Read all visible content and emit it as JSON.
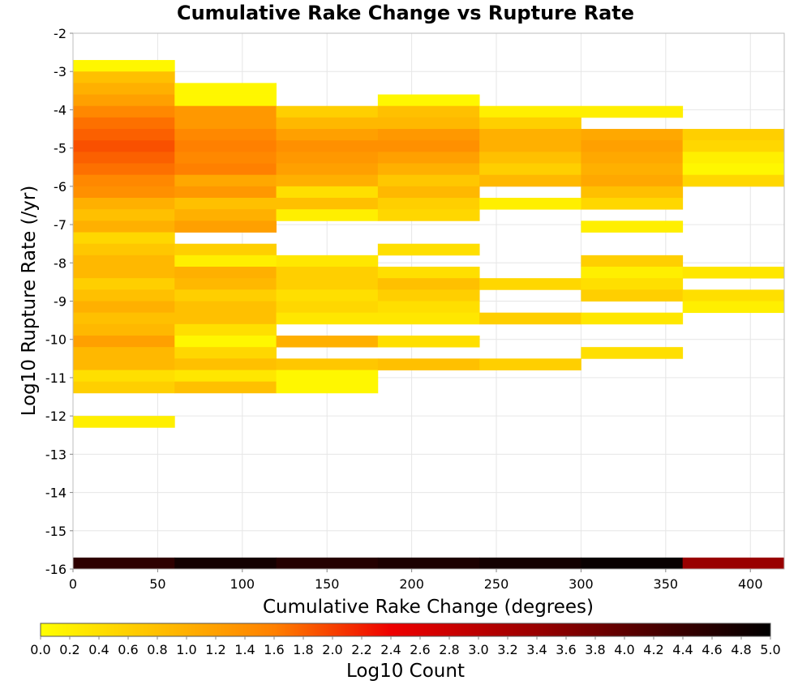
{
  "chart_data": {
    "type": "heatmap",
    "title": "Cumulative Rake Change vs Rupture Rate",
    "xlabel": "Cumulative Rake Change (degrees)",
    "ylabel": "Log10 Rupture Rate (/yr)",
    "xlim": [
      0,
      420
    ],
    "ylim": [
      -16,
      -2
    ],
    "x_ticks": [
      0,
      50,
      100,
      150,
      200,
      250,
      300,
      350,
      400
    ],
    "y_ticks": [
      -2,
      -3,
      -4,
      -5,
      -6,
      -7,
      -8,
      -9,
      -10,
      -11,
      -12,
      -13,
      -14,
      -15,
      -16
    ],
    "grid": true,
    "x_bin_width": 60,
    "y_bin_height": 0.3,
    "colorbar": {
      "label": "Log10 Count",
      "min": 0.0,
      "max": 5.0,
      "ticks": [
        "0.0",
        "0.2",
        "0.4",
        "0.6",
        "0.8",
        "1.0",
        "1.2",
        "1.4",
        "1.6",
        "1.8",
        "2.0",
        "2.2",
        "2.4",
        "2.6",
        "2.8",
        "3.0",
        "3.2",
        "3.4",
        "3.6",
        "3.8",
        "4.0",
        "4.2",
        "4.4",
        "4.6",
        "4.8",
        "5.0"
      ],
      "stops": [
        {
          "value": 0.0,
          "color": "#ffff00"
        },
        {
          "value": 1.6,
          "color": "#ff8000"
        },
        {
          "value": 2.4,
          "color": "#ee0000"
        },
        {
          "value": 3.4,
          "color": "#990000"
        },
        {
          "value": 4.2,
          "color": "#4a0000"
        },
        {
          "value": 5.0,
          "color": "#000000"
        }
      ]
    },
    "columns": [
      {
        "x": 0,
        "cells": [
          {
            "y": -3.0,
            "v": 0.1
          },
          {
            "y": -3.3,
            "v": 0.8
          },
          {
            "y": -3.6,
            "v": 1.0
          },
          {
            "y": -3.9,
            "v": 1.2
          },
          {
            "y": -4.2,
            "v": 1.5
          },
          {
            "y": -4.5,
            "v": 1.7
          },
          {
            "y": -4.8,
            "v": 1.8
          },
          {
            "y": -5.1,
            "v": 1.9
          },
          {
            "y": -5.4,
            "v": 1.8
          },
          {
            "y": -5.7,
            "v": 1.7
          },
          {
            "y": -6.0,
            "v": 1.5
          },
          {
            "y": -6.3,
            "v": 1.4
          },
          {
            "y": -6.6,
            "v": 1.0
          },
          {
            "y": -6.9,
            "v": 0.8
          },
          {
            "y": -7.2,
            "v": 1.0
          },
          {
            "y": -7.5,
            "v": 0.5
          },
          {
            "y": -7.8,
            "v": 0.7
          },
          {
            "y": -8.1,
            "v": 0.9
          },
          {
            "y": -8.4,
            "v": 0.9
          },
          {
            "y": -8.7,
            "v": 0.6
          },
          {
            "y": -9.0,
            "v": 0.8
          },
          {
            "y": -9.3,
            "v": 1.0
          },
          {
            "y": -9.6,
            "v": 0.8
          },
          {
            "y": -9.9,
            "v": 0.9
          },
          {
            "y": -10.2,
            "v": 1.2
          },
          {
            "y": -10.5,
            "v": 0.9
          },
          {
            "y": -10.8,
            "v": 0.9
          },
          {
            "y": -11.1,
            "v": 0.4
          },
          {
            "y": -11.4,
            "v": 0.6
          },
          {
            "y": -12.3,
            "v": 0.2
          },
          {
            "y": -16.0,
            "v": 4.5
          }
        ]
      },
      {
        "x": 60,
        "cells": [
          {
            "y": -3.6,
            "v": 0.1
          },
          {
            "y": -3.9,
            "v": 0.1
          },
          {
            "y": -4.2,
            "v": 1.3
          },
          {
            "y": -4.5,
            "v": 1.3
          },
          {
            "y": -4.8,
            "v": 1.5
          },
          {
            "y": -5.1,
            "v": 1.6
          },
          {
            "y": -5.4,
            "v": 1.5
          },
          {
            "y": -5.7,
            "v": 1.6
          },
          {
            "y": -6.0,
            "v": 1.1
          },
          {
            "y": -6.3,
            "v": 1.3
          },
          {
            "y": -6.6,
            "v": 0.8
          },
          {
            "y": -6.9,
            "v": 1.0
          },
          {
            "y": -7.2,
            "v": 1.2
          },
          {
            "y": -7.8,
            "v": 0.6
          },
          {
            "y": -8.1,
            "v": 0.2
          },
          {
            "y": -8.4,
            "v": 1.0
          },
          {
            "y": -8.7,
            "v": 0.9
          },
          {
            "y": -9.0,
            "v": 0.6
          },
          {
            "y": -9.3,
            "v": 0.8
          },
          {
            "y": -9.6,
            "v": 0.8
          },
          {
            "y": -9.9,
            "v": 0.4
          },
          {
            "y": -10.2,
            "v": 0.1
          },
          {
            "y": -10.5,
            "v": 0.5
          },
          {
            "y": -10.8,
            "v": 0.8
          },
          {
            "y": -11.1,
            "v": 0.3
          },
          {
            "y": -11.4,
            "v": 0.8
          },
          {
            "y": -16.0,
            "v": 4.8
          }
        ]
      },
      {
        "x": 120,
        "cells": [
          {
            "y": -4.2,
            "v": 0.6
          },
          {
            "y": -4.5,
            "v": 0.9
          },
          {
            "y": -4.8,
            "v": 1.2
          },
          {
            "y": -5.1,
            "v": 1.4
          },
          {
            "y": -5.4,
            "v": 1.3
          },
          {
            "y": -5.7,
            "v": 1.2
          },
          {
            "y": -6.0,
            "v": 1.0
          },
          {
            "y": -6.3,
            "v": 0.4
          },
          {
            "y": -6.6,
            "v": 0.8
          },
          {
            "y": -6.9,
            "v": 0.2
          },
          {
            "y": -8.1,
            "v": 0.3
          },
          {
            "y": -8.4,
            "v": 0.6
          },
          {
            "y": -8.7,
            "v": 0.6
          },
          {
            "y": -9.0,
            "v": 0.4
          },
          {
            "y": -9.3,
            "v": 0.5
          },
          {
            "y": -9.6,
            "v": 0.3
          },
          {
            "y": -10.2,
            "v": 1.0
          },
          {
            "y": -10.8,
            "v": 0.7
          },
          {
            "y": -11.1,
            "v": 0.1
          },
          {
            "y": -11.4,
            "v": 0.1
          },
          {
            "y": -16.0,
            "v": 4.6
          }
        ]
      },
      {
        "x": 180,
        "cells": [
          {
            "y": -3.9,
            "v": 0.1
          },
          {
            "y": -4.2,
            "v": 0.8
          },
          {
            "y": -4.5,
            "v": 0.9
          },
          {
            "y": -4.8,
            "v": 1.3
          },
          {
            "y": -5.1,
            "v": 1.4
          },
          {
            "y": -5.4,
            "v": 1.2
          },
          {
            "y": -5.7,
            "v": 1.0
          },
          {
            "y": -6.0,
            "v": 0.7
          },
          {
            "y": -6.3,
            "v": 0.9
          },
          {
            "y": -6.6,
            "v": 0.6
          },
          {
            "y": -6.9,
            "v": 0.5
          },
          {
            "y": -7.8,
            "v": 0.4
          },
          {
            "y": -8.4,
            "v": 0.4
          },
          {
            "y": -8.7,
            "v": 0.8
          },
          {
            "y": -9.0,
            "v": 0.6
          },
          {
            "y": -9.3,
            "v": 0.4
          },
          {
            "y": -9.6,
            "v": 0.3
          },
          {
            "y": -10.2,
            "v": 0.4
          },
          {
            "y": -10.8,
            "v": 0.8
          },
          {
            "y": -16.0,
            "v": 4.7
          }
        ]
      },
      {
        "x": 240,
        "cells": [
          {
            "y": -4.2,
            "v": 0.2
          },
          {
            "y": -4.5,
            "v": 0.6
          },
          {
            "y": -4.8,
            "v": 1.0
          },
          {
            "y": -5.1,
            "v": 1.0
          },
          {
            "y": -5.4,
            "v": 0.8
          },
          {
            "y": -5.7,
            "v": 0.6
          },
          {
            "y": -6.0,
            "v": 0.9
          },
          {
            "y": -6.6,
            "v": 0.2
          },
          {
            "y": -8.7,
            "v": 0.5
          },
          {
            "y": -9.6,
            "v": 0.6
          },
          {
            "y": -10.8,
            "v": 0.6
          },
          {
            "y": -16.0,
            "v": 4.8
          }
        ]
      },
      {
        "x": 300,
        "cells": [
          {
            "y": -4.2,
            "v": 0.2
          },
          {
            "y": -4.8,
            "v": 1.1
          },
          {
            "y": -5.1,
            "v": 1.2
          },
          {
            "y": -5.4,
            "v": 1.1
          },
          {
            "y": -5.7,
            "v": 1.0
          },
          {
            "y": -6.0,
            "v": 1.1
          },
          {
            "y": -6.3,
            "v": 0.8
          },
          {
            "y": -6.6,
            "v": 0.5
          },
          {
            "y": -7.2,
            "v": 0.2
          },
          {
            "y": -8.1,
            "v": 0.6
          },
          {
            "y": -8.4,
            "v": 0.2
          },
          {
            "y": -8.7,
            "v": 0.4
          },
          {
            "y": -9.0,
            "v": 0.6
          },
          {
            "y": -9.6,
            "v": 0.3
          },
          {
            "y": -10.5,
            "v": 0.4
          },
          {
            "y": -16.0,
            "v": 4.9
          }
        ]
      },
      {
        "x": 360,
        "cells": [
          {
            "y": -4.8,
            "v": 0.6
          },
          {
            "y": -5.1,
            "v": 0.5
          },
          {
            "y": -5.4,
            "v": 0.2
          },
          {
            "y": -5.7,
            "v": 0.1
          },
          {
            "y": -6.0,
            "v": 0.5
          },
          {
            "y": -8.4,
            "v": 0.3
          },
          {
            "y": -9.0,
            "v": 0.4
          },
          {
            "y": -9.3,
            "v": 0.2
          },
          {
            "y": -16.0,
            "v": 3.4
          }
        ]
      }
    ]
  }
}
